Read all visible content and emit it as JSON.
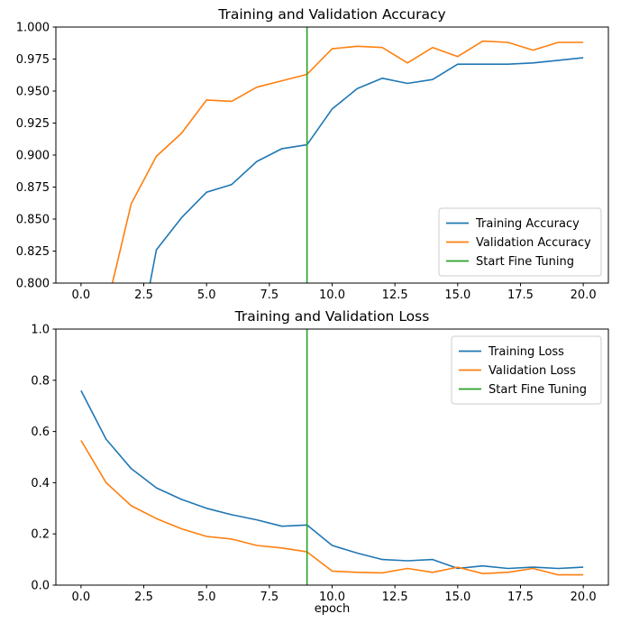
{
  "colors": {
    "blue": "#1f77b4",
    "orange": "#ff7f0e",
    "green": "#2ca02c",
    "axis": "#000000",
    "legend_border": "#cccccc",
    "background": "#ffffff"
  },
  "chart_data": [
    {
      "type": "line",
      "id": "accuracy",
      "title": "Training and Validation Accuracy",
      "xlabel": "",
      "ylabel": "",
      "xlim": [
        -1,
        21
      ],
      "ylim": [
        0.8,
        1.0
      ],
      "xticks": [
        0,
        2.5,
        5,
        7.5,
        10,
        12.5,
        15,
        17.5,
        20
      ],
      "xtick_labels": [
        "0.0",
        "2.5",
        "5.0",
        "7.5",
        "10.0",
        "12.5",
        "15.0",
        "17.5",
        "20.0"
      ],
      "yticks": [
        0.8,
        0.825,
        0.85,
        0.875,
        0.9,
        0.925,
        0.95,
        0.975,
        1.0
      ],
      "ytick_labels": [
        "0.800",
        "0.825",
        "0.850",
        "0.875",
        "0.900",
        "0.925",
        "0.950",
        "0.975",
        "1.000"
      ],
      "grid": false,
      "legend_position": "lower-right",
      "vline": {
        "x": 9,
        "label": "Start Fine Tuning",
        "color": "#2ca02c"
      },
      "series": [
        {
          "name": "Training Accuracy",
          "color": "#1f77b4",
          "x": [
            2.75,
            3,
            4,
            5,
            6,
            7,
            8,
            9,
            10,
            11,
            12,
            13,
            14,
            15,
            16,
            17,
            18,
            19,
            20
          ],
          "y": [
            0.8,
            0.826,
            0.851,
            0.871,
            0.877,
            0.895,
            0.905,
            0.908,
            0.936,
            0.952,
            0.96,
            0.956,
            0.959,
            0.971,
            0.971,
            0.971,
            0.972,
            0.974,
            0.976
          ]
        },
        {
          "name": "Validation Accuracy",
          "color": "#ff7f0e",
          "x": [
            1.25,
            2,
            3,
            4,
            5,
            6,
            7,
            8,
            9,
            10,
            11,
            12,
            13,
            14,
            15,
            16,
            17,
            18,
            19,
            20
          ],
          "y": [
            0.8,
            0.862,
            0.899,
            0.917,
            0.943,
            0.942,
            0.953,
            0.958,
            0.963,
            0.983,
            0.985,
            0.984,
            0.972,
            0.984,
            0.977,
            0.989,
            0.988,
            0.982,
            0.988,
            0.988
          ]
        }
      ]
    },
    {
      "type": "line",
      "id": "loss",
      "title": "Training and Validation Loss",
      "xlabel": "epoch",
      "ylabel": "",
      "xlim": [
        -1,
        21
      ],
      "ylim": [
        0.0,
        1.0
      ],
      "xticks": [
        0,
        2.5,
        5,
        7.5,
        10,
        12.5,
        15,
        17.5,
        20
      ],
      "xtick_labels": [
        "0.0",
        "2.5",
        "5.0",
        "7.5",
        "10.0",
        "12.5",
        "15.0",
        "17.5",
        "20.0"
      ],
      "yticks": [
        0.0,
        0.2,
        0.4,
        0.6,
        0.8,
        1.0
      ],
      "ytick_labels": [
        "0.0",
        "0.2",
        "0.4",
        "0.6",
        "0.8",
        "1.0"
      ],
      "grid": false,
      "legend_position": "upper-right",
      "vline": {
        "x": 9,
        "label": "Start Fine Tuning",
        "color": "#2ca02c"
      },
      "series": [
        {
          "name": "Training Loss",
          "color": "#1f77b4",
          "x": [
            0,
            1,
            2,
            3,
            4,
            5,
            6,
            7,
            8,
            9,
            10,
            11,
            12,
            13,
            14,
            15,
            16,
            17,
            18,
            19,
            20
          ],
          "y": [
            0.76,
            0.57,
            0.455,
            0.38,
            0.335,
            0.3,
            0.275,
            0.255,
            0.23,
            0.235,
            0.155,
            0.125,
            0.1,
            0.095,
            0.1,
            0.065,
            0.075,
            0.065,
            0.07,
            0.065,
            0.07
          ]
        },
        {
          "name": "Validation Loss",
          "color": "#ff7f0e",
          "x": [
            0,
            1,
            2,
            3,
            4,
            5,
            6,
            7,
            8,
            9,
            10,
            11,
            12,
            13,
            14,
            15,
            16,
            17,
            18,
            19,
            20
          ],
          "y": [
            0.565,
            0.4,
            0.31,
            0.26,
            0.22,
            0.19,
            0.18,
            0.155,
            0.145,
            0.13,
            0.055,
            0.05,
            0.048,
            0.065,
            0.05,
            0.07,
            0.045,
            0.05,
            0.065,
            0.04,
            0.04
          ]
        }
      ]
    }
  ]
}
